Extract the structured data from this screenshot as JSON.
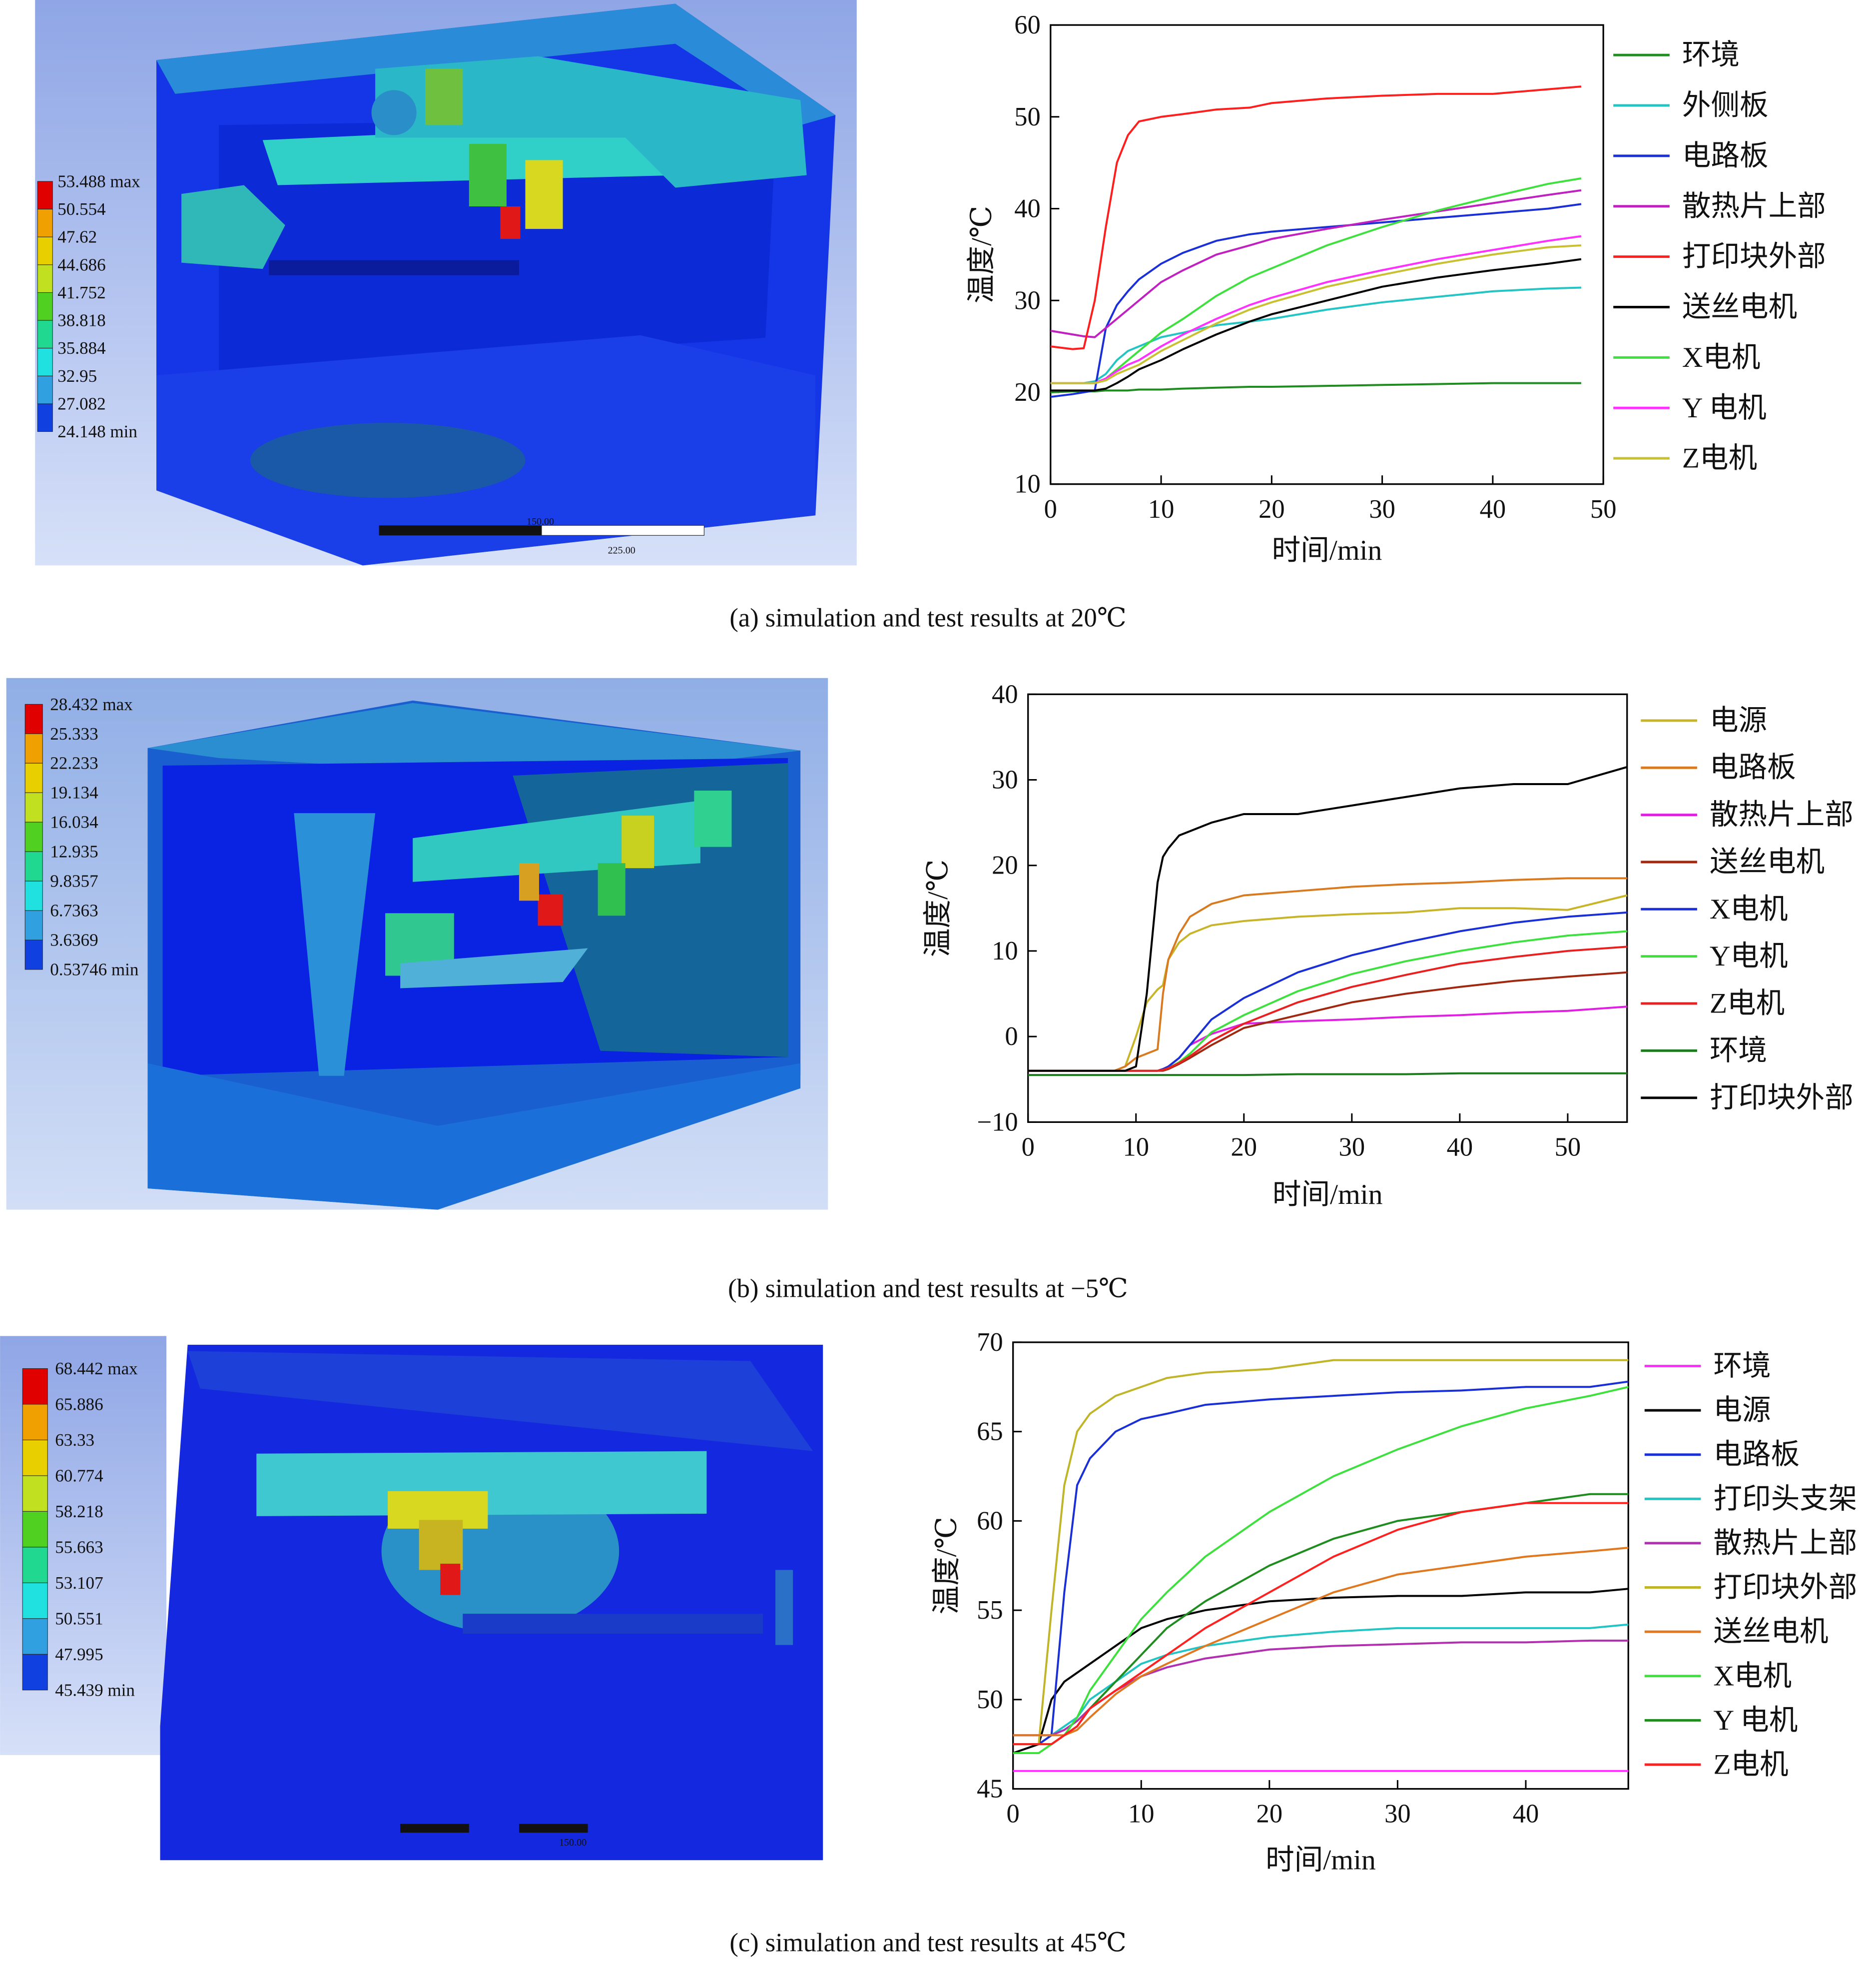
{
  "chart_data": [
    {
      "type": "line",
      "caption": "(a) simulation and test results at 20℃",
      "x_label": "时间/min",
      "y_label": "温度/℃",
      "xlim": [
        0,
        50
      ],
      "ylim": [
        10,
        60
      ],
      "xticks": [
        0,
        10,
        20,
        30,
        40,
        50
      ],
      "yticks": [
        10,
        20,
        30,
        40,
        50,
        60
      ],
      "legend": "outside-right",
      "x": [
        0,
        2,
        3,
        4,
        5,
        6,
        7,
        8,
        10,
        12,
        15,
        18,
        20,
        25,
        30,
        35,
        40,
        45,
        48
      ],
      "series": [
        {
          "name": "环境",
          "color": "#1e8c1e",
          "values": [
            20,
            20.1,
            20.1,
            20.1,
            20.2,
            20.2,
            20.2,
            20.3,
            20.3,
            20.4,
            20.5,
            20.6,
            20.6,
            20.7,
            20.8,
            20.9,
            21,
            21,
            21
          ]
        },
        {
          "name": "外侧板",
          "color": "#22c4c4",
          "values": [
            21,
            21,
            21,
            21.2,
            22,
            23.5,
            24.5,
            25,
            26,
            26.5,
            27.3,
            27.7,
            28,
            29,
            29.8,
            30.4,
            31,
            31.3,
            31.4
          ]
        },
        {
          "name": "电路板",
          "color": "#1a2fd6",
          "values": [
            19.5,
            19.8,
            20,
            20.2,
            27,
            29.5,
            31,
            32.3,
            34,
            35.2,
            36.5,
            37.2,
            37.5,
            38,
            38.5,
            39,
            39.5,
            40,
            40.5
          ]
        },
        {
          "name": "散热片上部",
          "color": "#c020c0",
          "values": [
            26.7,
            26.3,
            26.1,
            26,
            27,
            28,
            29,
            30,
            32,
            33.3,
            35,
            36,
            36.7,
            37.8,
            38.8,
            39.7,
            40.6,
            41.5,
            42
          ]
        },
        {
          "name": "打印块外部",
          "color": "#ff1e1e",
          "values": [
            25,
            24.7,
            24.8,
            30,
            38,
            45,
            48,
            49.5,
            50,
            50.3,
            50.8,
            51,
            51.5,
            52,
            52.3,
            52.5,
            52.5,
            53,
            53.3
          ]
        },
        {
          "name": "送丝电机",
          "color": "#000000",
          "values": [
            20.2,
            20.2,
            20.2,
            20.2,
            20.4,
            21,
            21.7,
            22.5,
            23.5,
            24.7,
            26.3,
            27.7,
            28.5,
            30,
            31.5,
            32.5,
            33.3,
            34,
            34.5
          ]
        },
        {
          "name": "X电机",
          "color": "#3ee03e",
          "values": [
            21,
            21,
            21,
            21,
            21.5,
            22.5,
            23.5,
            24.5,
            26.5,
            28,
            30.5,
            32.5,
            33.5,
            36,
            38,
            39.8,
            41.3,
            42.7,
            43.3
          ]
        },
        {
          "name": "Y 电机",
          "color": "#ff30ff",
          "values": [
            21,
            21,
            21,
            21,
            21.5,
            22.3,
            23,
            23.5,
            25,
            26.3,
            28,
            29.5,
            30.3,
            32,
            33.3,
            34.5,
            35.5,
            36.5,
            37
          ]
        },
        {
          "name": "Z电机",
          "color": "#c8c030",
          "values": [
            21,
            21,
            21,
            21,
            21.3,
            22,
            22.5,
            23,
            24.5,
            25.7,
            27.5,
            29,
            29.8,
            31.5,
            32.8,
            34,
            35,
            35.8,
            36
          ]
        }
      ]
    },
    {
      "type": "line",
      "caption": "(b) simulation and test results at −5℃",
      "x_label": "时间/min",
      "y_label": "温度/℃",
      "xlim": [
        0,
        55.5
      ],
      "ylim": [
        -10,
        40
      ],
      "xticks": [
        0,
        10,
        20,
        30,
        40,
        50
      ],
      "yticks": [
        {
          "value": -10,
          "label": "−10"
        },
        0,
        10,
        20,
        30,
        40
      ],
      "legend": "outside-right",
      "x": [
        0,
        5,
        8,
        9,
        10,
        11,
        12,
        12.5,
        13,
        14,
        15,
        17,
        20,
        25,
        30,
        35,
        40,
        45,
        50,
        55.5
      ],
      "series": [
        {
          "name": "电源",
          "color": "#c8b428",
          "values": [
            -4,
            -4,
            -4,
            -3.5,
            0,
            4,
            5.5,
            6,
            9,
            11,
            12,
            13,
            13.5,
            14,
            14.3,
            14.5,
            15,
            15,
            14.8,
            16.5
          ]
        },
        {
          "name": "电路板",
          "color": "#d87a20",
          "values": [
            -4,
            -4,
            -4,
            -3.5,
            -2.5,
            -2,
            -1.5,
            5,
            9,
            12,
            14,
            15.5,
            16.5,
            17,
            17.5,
            17.8,
            18,
            18.3,
            18.5,
            18.5
          ]
        },
        {
          "name": "散热片上部",
          "color": "#e020e0",
          "values": [
            -4,
            -4,
            -4,
            -4,
            -4,
            -4,
            -4,
            -3.8,
            -3.5,
            -2.5,
            -1,
            0.3,
            1.5,
            1.8,
            2,
            2.3,
            2.5,
            2.8,
            3,
            3.5
          ]
        },
        {
          "name": "送丝电机",
          "color": "#a02810",
          "values": [
            -4,
            -4,
            -4,
            -4,
            -4,
            -4,
            -4,
            -4,
            -3.8,
            -3.2,
            -2.5,
            -1,
            1,
            2.5,
            4,
            5,
            5.8,
            6.5,
            7,
            7.5
          ]
        },
        {
          "name": "X电机",
          "color": "#1a2fd6",
          "values": [
            -4,
            -4,
            -4,
            -4,
            -4,
            -4,
            -4,
            -3.8,
            -3.5,
            -2.5,
            -1,
            2,
            4.5,
            7.5,
            9.5,
            11,
            12.3,
            13.3,
            14,
            14.5
          ]
        },
        {
          "name": "Y电机",
          "color": "#3ee03e",
          "values": [
            -4,
            -4,
            -4,
            -4,
            -4,
            -4,
            -4,
            -3.9,
            -3.7,
            -3,
            -2,
            0.5,
            2.5,
            5.3,
            7.3,
            8.8,
            10,
            11,
            11.8,
            12.3
          ]
        },
        {
          "name": "Z电机",
          "color": "#e82020",
          "values": [
            -4,
            -4,
            -4,
            -4,
            -4,
            -4,
            -4,
            -3.9,
            -3.7,
            -3.1,
            -2.3,
            -0.5,
            1.5,
            4,
            5.8,
            7.2,
            8.5,
            9.3,
            10,
            10.5
          ]
        },
        {
          "name": "环境",
          "color": "#1e7a1e",
          "values": [
            -4.5,
            -4.5,
            -4.5,
            -4.5,
            -4.5,
            -4.5,
            -4.5,
            -4.5,
            -4.5,
            -4.5,
            -4.5,
            -4.5,
            -4.5,
            -4.4,
            -4.4,
            -4.4,
            -4.3,
            -4.3,
            -4.3,
            -4.3
          ]
        },
        {
          "name": "打印块外部",
          "color": "#000000",
          "values": [
            -4,
            -4,
            -4,
            -4,
            -3.5,
            5,
            18,
            21,
            22,
            23.5,
            24,
            25,
            26,
            26,
            27,
            28,
            29,
            29.5,
            29.5,
            31.5
          ]
        }
      ]
    },
    {
      "type": "line",
      "caption": "(c) simulation and test results at 45℃",
      "x_label": "时间/min",
      "y_label": "温度/℃",
      "xlim": [
        0,
        48
      ],
      "ylim": [
        45,
        70
      ],
      "xticks": [
        0,
        10,
        20,
        30,
        40
      ],
      "yticks": [
        45,
        50,
        55,
        60,
        65,
        70
      ],
      "legend": "outside-right",
      "x": [
        0,
        2,
        3,
        4,
        5,
        6,
        8,
        10,
        12,
        15,
        20,
        25,
        30,
        35,
        40,
        45,
        48
      ],
      "series": [
        {
          "name": "环境",
          "color": "#ff30ff",
          "values": [
            46,
            46,
            46,
            46,
            46,
            46,
            46,
            46,
            46,
            46,
            46,
            46,
            46,
            46,
            46,
            46,
            46
          ]
        },
        {
          "name": "电源",
          "color": "#000000",
          "values": [
            47,
            47.5,
            50,
            51,
            51.5,
            52,
            53,
            54,
            54.5,
            55,
            55.5,
            55.7,
            55.8,
            55.8,
            56,
            56,
            56.2
          ]
        },
        {
          "name": "电路板",
          "color": "#1a2fd6",
          "values": [
            47.5,
            47.5,
            48,
            56,
            62,
            63.5,
            65,
            65.7,
            66,
            66.5,
            66.8,
            67,
            67.2,
            67.3,
            67.5,
            67.5,
            67.8
          ]
        },
        {
          "name": "打印头支架",
          "color": "#22c4c4",
          "values": [
            48,
            48,
            48,
            48.5,
            49,
            50,
            51,
            52,
            52.5,
            53,
            53.5,
            53.8,
            54,
            54,
            54,
            54,
            54.2
          ]
        },
        {
          "name": "散热片上部",
          "color": "#b030b0",
          "values": [
            48,
            48,
            48,
            48.3,
            48.8,
            49.5,
            50.5,
            51.3,
            51.8,
            52.3,
            52.8,
            53,
            53.1,
            53.2,
            53.2,
            53.3,
            53.3
          ]
        },
        {
          "name": "打印块外部",
          "color": "#c0b428",
          "values": [
            47.5,
            47.5,
            55,
            62,
            65,
            66,
            67,
            67.5,
            68,
            68.3,
            68.5,
            69,
            69,
            69,
            69,
            69,
            69
          ]
        },
        {
          "name": "送丝电机",
          "color": "#e07820",
          "values": [
            48,
            48,
            48,
            48,
            48.3,
            49,
            50.3,
            51.3,
            52,
            53,
            54.5,
            56,
            57,
            57.5,
            58,
            58.3,
            58.5
          ]
        },
        {
          "name": "X电机",
          "color": "#3ee03e",
          "values": [
            47,
            47,
            47.5,
            48,
            49,
            50.5,
            52.5,
            54.5,
            56,
            58,
            60.5,
            62.5,
            64,
            65.3,
            66.3,
            67,
            67.5
          ]
        },
        {
          "name": "Y 电机",
          "color": "#1e8c1e",
          "values": [
            47.5,
            47.5,
            47.5,
            48,
            48.5,
            49.5,
            51,
            52.5,
            54,
            55.5,
            57.5,
            59,
            60,
            60.5,
            61,
            61.5,
            61.5
          ]
        },
        {
          "name": "Z电机",
          "color": "#ff2020",
          "values": [
            47.5,
            47.5,
            47.5,
            48,
            48.5,
            49.5,
            50.5,
            51.5,
            52.5,
            54,
            56,
            58,
            59.5,
            60.5,
            61,
            61,
            61
          ]
        }
      ]
    }
  ],
  "simulations": [
    {
      "colorbar_labels": [
        "53.488 max",
        "50.554",
        "47.62",
        "44.686",
        "41.752",
        "38.818",
        "35.884",
        "32.95",
        "27.082",
        "24.148 min"
      ],
      "scale_labels": [
        "150.00",
        "225.00"
      ]
    },
    {
      "colorbar_labels": [
        "28.432 max",
        "25.333",
        "22.233",
        "19.134",
        "16.034",
        "12.935",
        "9.8357",
        "6.7363",
        "3.6369",
        "0.53746 min"
      ]
    },
    {
      "colorbar_labels": [
        "68.442 max",
        "65.886",
        "63.33",
        "60.774",
        "58.218",
        "55.663",
        "53.107",
        "50.551",
        "47.995",
        "45.439 min"
      ],
      "scale_labels": [
        "150.00"
      ]
    }
  ]
}
